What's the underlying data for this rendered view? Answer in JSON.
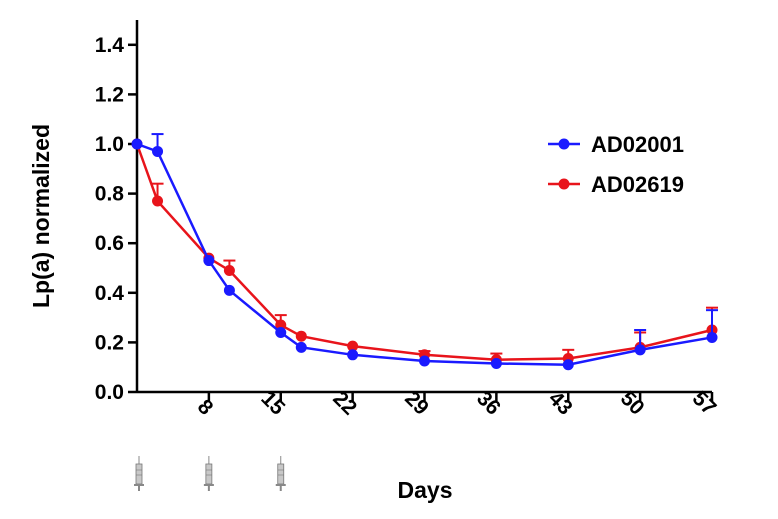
{
  "chart_data": {
    "type": "line",
    "xlabel": "Days",
    "ylabel": "Lp(a) normalized",
    "xlim": [
      1,
      57
    ],
    "ylim": [
      0,
      1.5
    ],
    "x_ticks": [
      8,
      15,
      22,
      29,
      36,
      43,
      50,
      57
    ],
    "y_ticks": [
      "0.0",
      "0.2",
      "0.4",
      "0.6",
      "0.8",
      "1.0",
      "1.2",
      "1.4"
    ],
    "legend_position": "right",
    "dosing_days": [
      1,
      8,
      15
    ],
    "dosing_icon": "syringe-icon",
    "series": [
      {
        "name": "AD02001",
        "color": "#1a1aff",
        "points": [
          {
            "x": 1,
            "y": 1.0
          },
          {
            "x": 3,
            "y": 0.97,
            "err": 0.07
          },
          {
            "x": 8,
            "y": 0.53
          },
          {
            "x": 10,
            "y": 0.41
          },
          {
            "x": 15,
            "y": 0.24
          },
          {
            "x": 17,
            "y": 0.18
          },
          {
            "x": 22,
            "y": 0.15
          },
          {
            "x": 29,
            "y": 0.125
          },
          {
            "x": 36,
            "y": 0.115
          },
          {
            "x": 43,
            "y": 0.11
          },
          {
            "x": 50,
            "y": 0.17,
            "err": 0.08
          },
          {
            "x": 57,
            "y": 0.22,
            "err": 0.11
          }
        ]
      },
      {
        "name": "AD02619",
        "color": "#e8141b",
        "points": [
          {
            "x": 1,
            "y": 1.0
          },
          {
            "x": 3,
            "y": 0.77,
            "err": 0.07
          },
          {
            "x": 8,
            "y": 0.54
          },
          {
            "x": 10,
            "y": 0.49,
            "err": 0.04
          },
          {
            "x": 15,
            "y": 0.27,
            "err": 0.04
          },
          {
            "x": 17,
            "y": 0.225
          },
          {
            "x": 22,
            "y": 0.185
          },
          {
            "x": 29,
            "y": 0.15,
            "err": 0.015
          },
          {
            "x": 36,
            "y": 0.13,
            "err": 0.025
          },
          {
            "x": 43,
            "y": 0.135,
            "err": 0.035
          },
          {
            "x": 50,
            "y": 0.18,
            "err": 0.06
          },
          {
            "x": 57,
            "y": 0.25,
            "err": 0.09
          }
        ]
      }
    ]
  }
}
